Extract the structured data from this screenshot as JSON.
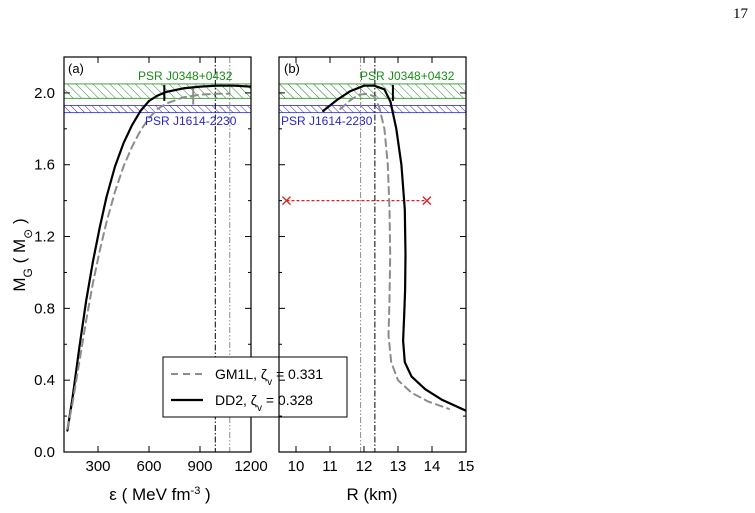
{
  "page_number": "17",
  "colors": {
    "dd2": "#000000",
    "gm1l": "#8c8c8c",
    "psr_j0348": "#1a8a1a",
    "psr_j1614": "#2828c8",
    "radius_range": "#e02020"
  },
  "legend": {
    "gm1l_label": "GM1L, ζ",
    "gm1l_sub": "v",
    "gm1l_value": " = 0.331",
    "dd2_label": "DD2, ζ",
    "dd2_sub": "v",
    "dd2_value": " = 0.328"
  },
  "y_axis": {
    "label_main": "M",
    "label_sub": "G",
    "label_unit_open": " ( M",
    "label_unit_sub": "⊙",
    "label_unit_close": " )",
    "ylim": [
      0.0,
      2.2
    ],
    "ticks": [
      "0.0",
      "0.4",
      "0.8",
      "1.2",
      "1.6",
      "2.0"
    ]
  },
  "chart_data": [
    {
      "type": "line",
      "panel_label": "(a)",
      "xlabel_main": "ε ( MeV fm",
      "xlabel_sup": "-3",
      "xlabel_close": " )",
      "xlim": [
        100,
        1200
      ],
      "ylim": [
        0.0,
        2.2
      ],
      "x_ticks": [
        "300",
        "600",
        "900",
        "1200"
      ],
      "bands": [
        {
          "name": "PSR J0348+0432",
          "ymin": 1.97,
          "ymax": 2.05
        },
        {
          "name": "PSR J1614-2230",
          "ymin": 1.89,
          "ymax": 1.93
        }
      ],
      "vlines": [
        {
          "series": "DD2",
          "x": 990
        },
        {
          "series": "GM1L",
          "x": 1075
        }
      ],
      "series": [
        {
          "name": "DD2",
          "x": [
            120,
            150,
            190,
            230,
            270,
            310,
            350,
            400,
            450,
            500,
            550,
            600,
            650,
            700,
            800,
            900,
            1000,
            1100,
            1200
          ],
          "y": [
            0.12,
            0.3,
            0.58,
            0.84,
            1.06,
            1.25,
            1.42,
            1.59,
            1.72,
            1.82,
            1.9,
            1.955,
            1.985,
            2.005,
            2.025,
            2.035,
            2.04,
            2.04,
            2.035
          ]
        },
        {
          "name": "GM1L",
          "x": [
            120,
            150,
            190,
            230,
            270,
            310,
            350,
            400,
            450,
            500,
            550,
            600,
            650,
            700,
            800,
            900,
            1000,
            1075
          ],
          "y": [
            0.13,
            0.27,
            0.5,
            0.73,
            0.94,
            1.12,
            1.28,
            1.45,
            1.59,
            1.7,
            1.79,
            1.86,
            1.91,
            1.94,
            1.975,
            1.99,
            1.995,
            1.995
          ]
        }
      ],
      "markers": [
        {
          "series": "DD2",
          "x": 690,
          "y": 2.0
        },
        {
          "series": "GM1L",
          "x": 860,
          "y": 1.98
        }
      ]
    },
    {
      "type": "line",
      "panel_label": "(b)",
      "xlabel_main": "R (km)",
      "xlim": [
        9.5,
        15.0
      ],
      "ylim": [
        0.0,
        2.2
      ],
      "x_ticks": [
        "10",
        "11",
        "12",
        "13",
        "14",
        "15"
      ],
      "bands": [
        {
          "name": "PSR J0348+0432",
          "ymin": 1.97,
          "ymax": 2.05
        },
        {
          "name": "PSR J1614-2230",
          "ymin": 1.89,
          "ymax": 1.93
        }
      ],
      "vlines": [
        {
          "series": "GM1L",
          "x": 11.9
        },
        {
          "series": "DD2",
          "x": 12.32
        }
      ],
      "radius_range": {
        "x": [
          9.72,
          13.85
        ],
        "y": 1.4
      },
      "series": [
        {
          "name": "DD2",
          "x": [
            10.8,
            11.2,
            11.6,
            12.0,
            12.3,
            12.6,
            12.78,
            12.95,
            13.1,
            13.2,
            13.22,
            13.21,
            13.18,
            13.15,
            13.2,
            13.4,
            13.8,
            14.3,
            15.0
          ],
          "y": [
            1.9,
            1.96,
            2.01,
            2.04,
            2.04,
            2.02,
            1.95,
            1.8,
            1.6,
            1.35,
            1.1,
            0.9,
            0.75,
            0.62,
            0.5,
            0.42,
            0.35,
            0.29,
            0.23
          ]
        },
        {
          "name": "GM1L",
          "x": [
            11.3,
            11.6,
            11.85,
            12.1,
            12.3,
            12.45,
            12.6,
            12.7,
            12.75,
            12.77,
            12.75,
            12.72,
            12.8,
            13.0,
            13.4,
            13.9,
            14.5
          ],
          "y": [
            1.91,
            1.96,
            1.99,
            1.995,
            1.98,
            1.92,
            1.8,
            1.6,
            1.35,
            1.1,
            0.85,
            0.65,
            0.5,
            0.4,
            0.33,
            0.28,
            0.24
          ]
        }
      ],
      "markers": [
        {
          "series": "DD2",
          "x": 12.85,
          "y": 2.0
        }
      ]
    }
  ]
}
